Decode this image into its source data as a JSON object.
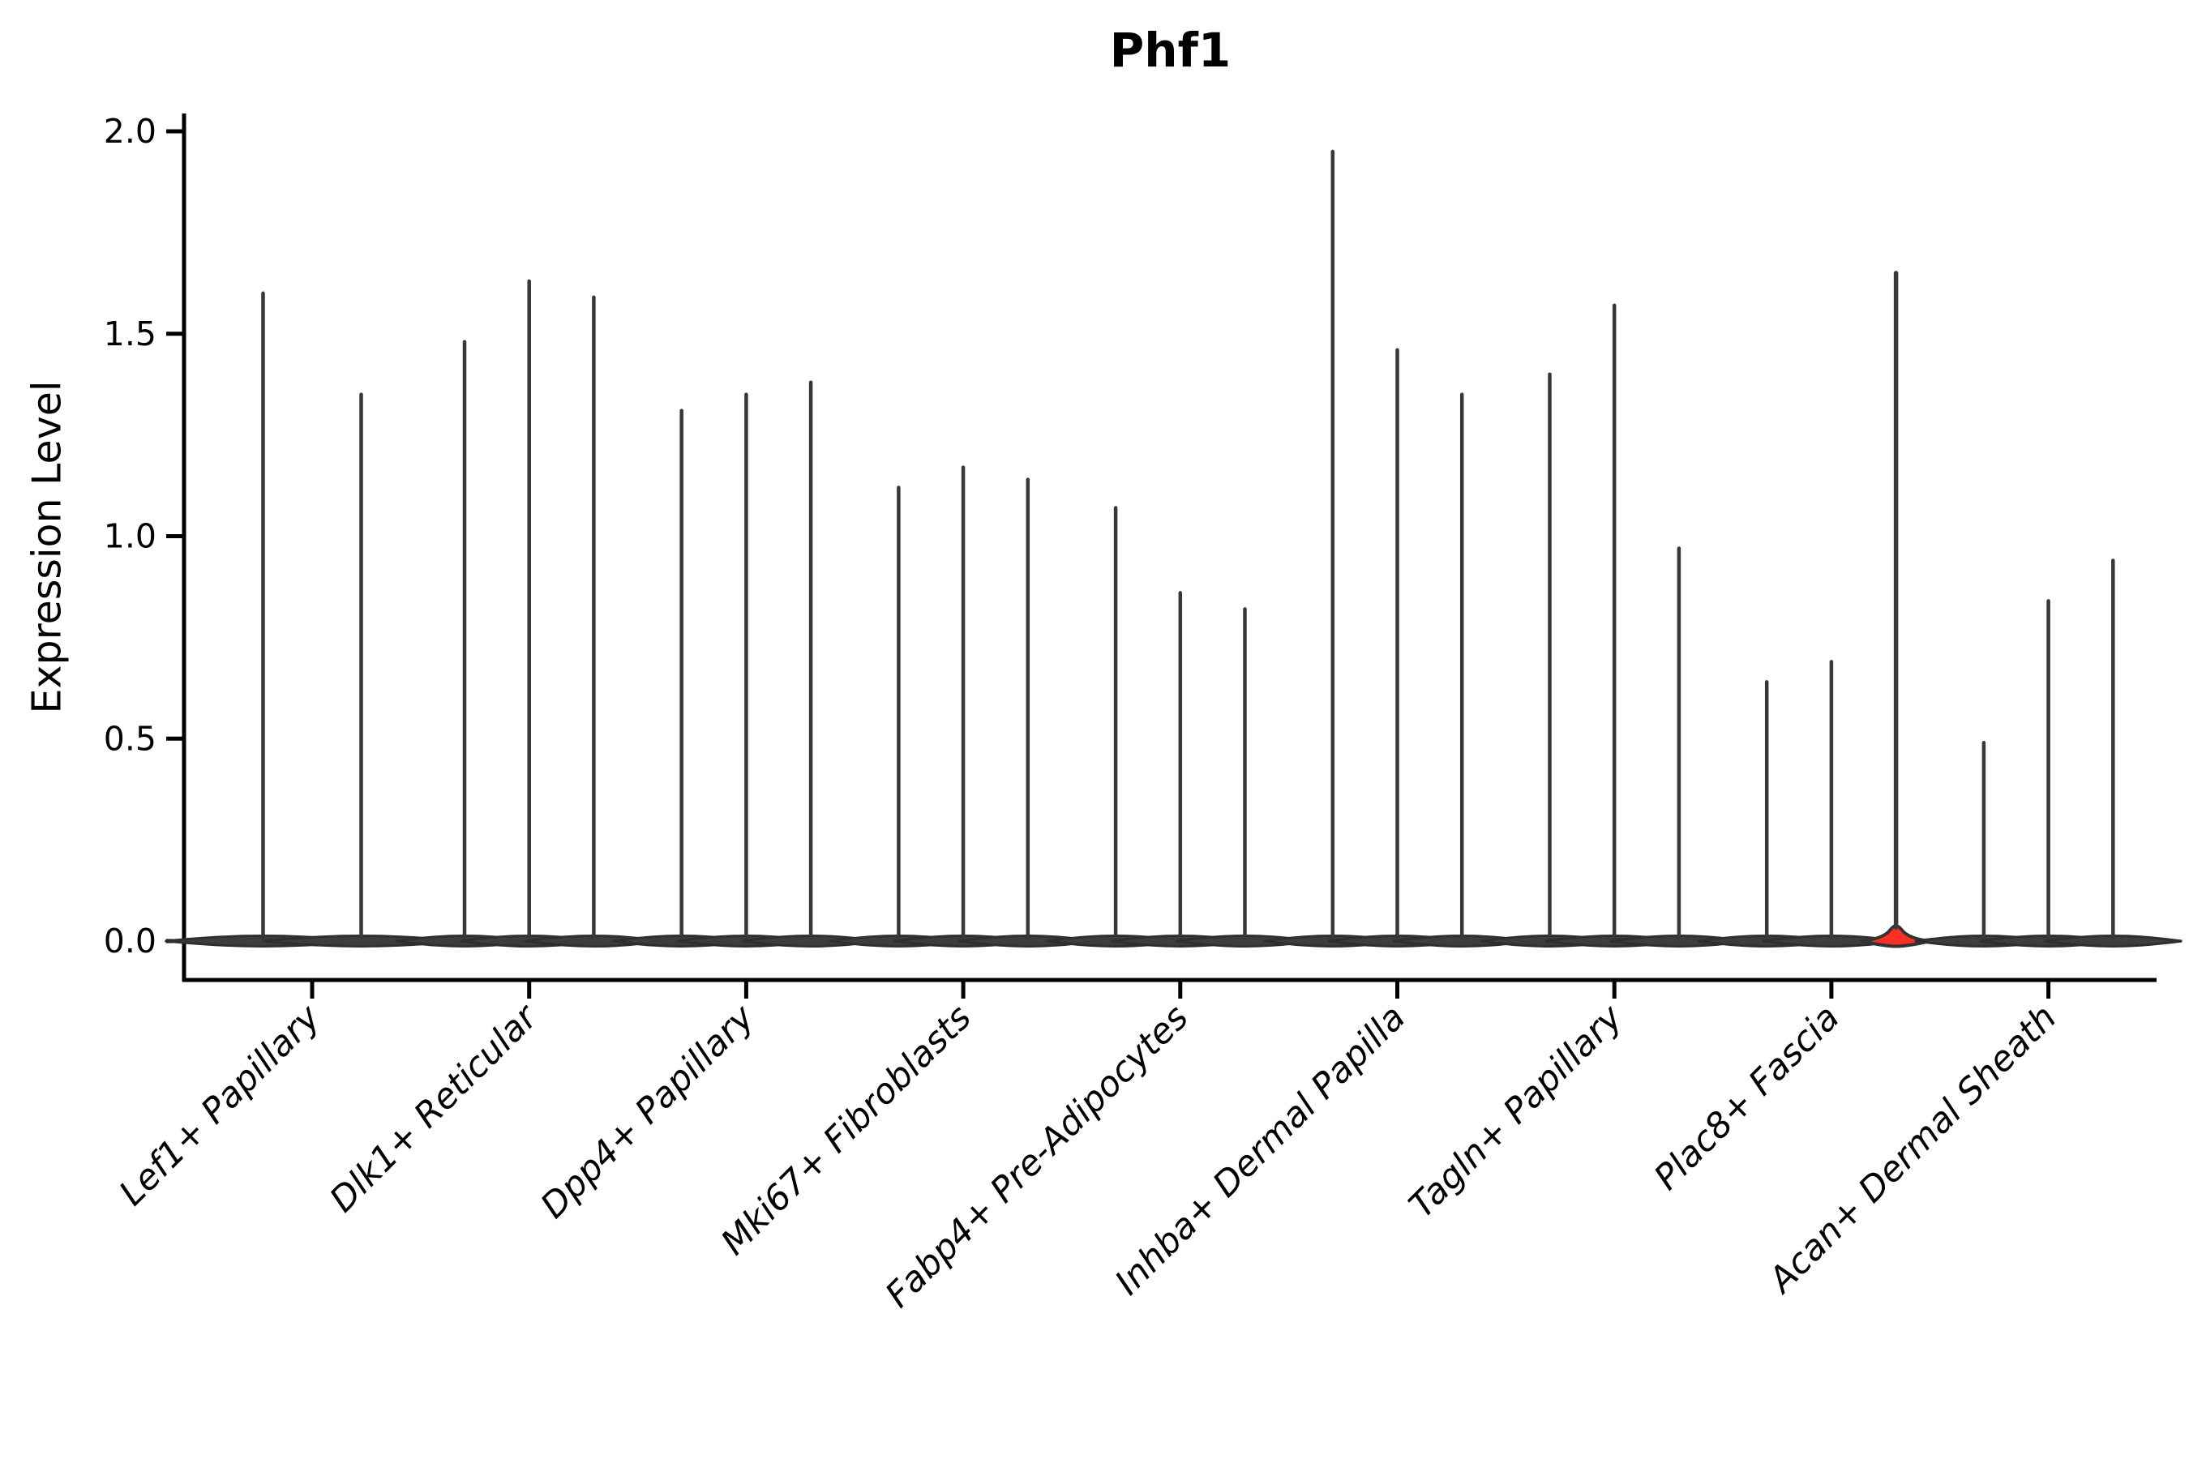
{
  "title": "Phf1",
  "y_axis": {
    "label": "Expression Level",
    "tick_labels": [
      "0.0",
      "0.5",
      "1.0",
      "1.5",
      "2.0"
    ],
    "tick_values": [
      0.0,
      0.5,
      1.0,
      1.5,
      2.0
    ],
    "range": [
      0.0,
      2.0
    ]
  },
  "colors": {
    "violin_dark": "#3d3d3d",
    "violin_outline": "#2f2f2f",
    "spike": "#383838",
    "highlight_red": "#fb3025",
    "axis": "#000000"
  },
  "chart_data": {
    "type": "violin",
    "title": "Phf1",
    "xlabel": "",
    "ylabel": "Expression Level",
    "ylim": [
      0.0,
      2.0
    ],
    "yticks": [
      0.0,
      0.5,
      1.0,
      1.5,
      2.0
    ],
    "grid": false,
    "legend": "none",
    "description": "Split violin plot of Phf1 expression; most density is a flat lens at 0 with a thin spike up to the maximum expression value per violin. One violin (Plac8+ Fascia, 3rd) is filled red with a visible density bell near 0.",
    "categories": [
      "Lef1+ Papillary",
      "Dlk1+ Reticular",
      "Dpp4+ Papillary",
      "Mki67+ Fibroblasts",
      "Fabp4+ Pre-Adipocytes",
      "Inhba+ Dermal Papilla",
      "Tagln+ Papillary",
      "Plac8+ Fascia",
      "Acan+ Dermal Sheath"
    ],
    "groups": [
      {
        "label": "Lef1+ Papillary",
        "violin_maxima": [
          1.6,
          1.35
        ],
        "highlight_index": null
      },
      {
        "label": "Dlk1+ Reticular",
        "violin_maxima": [
          1.48,
          1.63,
          1.59
        ],
        "highlight_index": null
      },
      {
        "label": "Dpp4+ Papillary",
        "violin_maxima": [
          1.31,
          1.35,
          1.38
        ],
        "highlight_index": null
      },
      {
        "label": "Mki67+ Fibroblasts",
        "violin_maxima": [
          1.12,
          1.17,
          1.14
        ],
        "highlight_index": null
      },
      {
        "label": "Fabp4+ Pre-Adipocytes",
        "violin_maxima": [
          1.07,
          0.86,
          0.82
        ],
        "highlight_index": null
      },
      {
        "label": "Inhba+ Dermal Papilla",
        "violin_maxima": [
          1.95,
          1.46,
          1.35
        ],
        "highlight_index": null
      },
      {
        "label": "Tagln+ Papillary",
        "violin_maxima": [
          1.4,
          1.57,
          0.97
        ],
        "highlight_index": null
      },
      {
        "label": "Plac8+ Fascia",
        "violin_maxima": [
          0.64,
          0.69,
          1.65
        ],
        "highlight_index": 2
      },
      {
        "label": "Acan+ Dermal Sheath",
        "violin_maxima": [
          0.49,
          0.84,
          0.94
        ],
        "highlight_index": null
      }
    ]
  }
}
